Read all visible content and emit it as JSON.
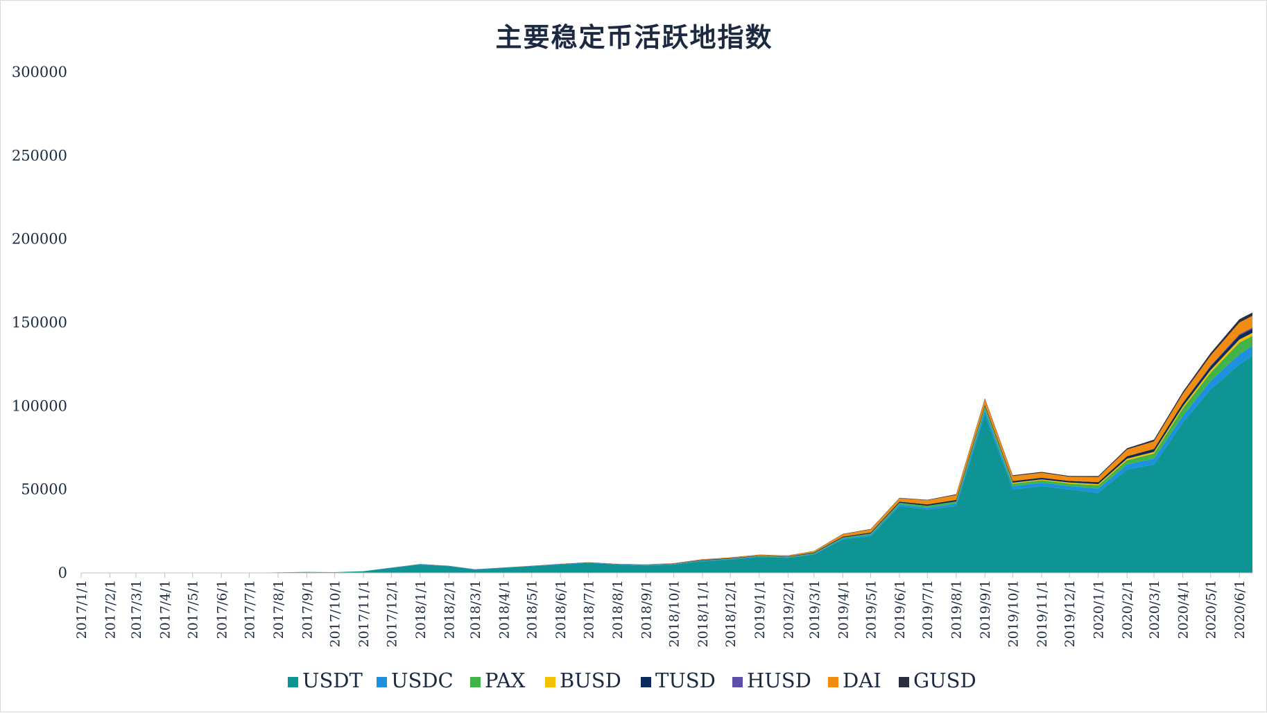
{
  "chart_data": {
    "type": "area",
    "stacked": true,
    "title": "主要稳定币活跃地指数",
    "xlabel": "",
    "ylabel": "",
    "ylim": [
      0,
      300000
    ],
    "yticks": [
      "0",
      "50000",
      "100000",
      "150000",
      "200000",
      "250000",
      "300000"
    ],
    "xticks": [
      "2017/1/1",
      "2017/2/1",
      "2017/3/1",
      "2017/4/1",
      "2017/5/1",
      "2017/6/1",
      "2017/7/1",
      "2017/8/1",
      "2017/9/1",
      "2017/10/1",
      "2017/11/1",
      "2017/12/1",
      "2018/1/1",
      "2018/2/1",
      "2018/3/1",
      "2018/4/1",
      "2018/5/1",
      "2018/6/1",
      "2018/7/1",
      "2018/8/1",
      "2018/9/1",
      "2018/10/1",
      "2018/11/1",
      "2018/12/1",
      "2019/1/1",
      "2019/2/1",
      "2019/3/1",
      "2019/4/1",
      "2019/5/1",
      "2019/6/1",
      "2019/7/1",
      "2019/8/1",
      "2019/9/1",
      "2019/10/1",
      "2019/11/1",
      "2019/12/1",
      "2020/1/1",
      "2020/2/1",
      "2020/3/1",
      "2020/4/1",
      "2020/5/1",
      "2020/6/1"
    ],
    "grid": false,
    "legend_position": "bottom",
    "x": [
      "2017/1/1",
      "2017/2/1",
      "2017/3/1",
      "2017/4/1",
      "2017/5/1",
      "2017/6/1",
      "2017/7/1",
      "2017/8/1",
      "2017/9/1",
      "2017/10/1",
      "2017/11/1",
      "2017/12/1",
      "2018/1/1",
      "2018/2/1",
      "2018/3/1",
      "2018/4/1",
      "2018/5/1",
      "2018/6/1",
      "2018/7/1",
      "2018/8/1",
      "2018/9/1",
      "2018/10/1",
      "2018/11/1",
      "2018/12/1",
      "2019/1/1",
      "2019/2/1",
      "2019/3/1",
      "2019/4/1",
      "2019/5/1",
      "2019/6/1",
      "2019/7/1",
      "2019/8/1",
      "2019/9/1",
      "2019/10/1",
      "2019/11/1",
      "2019/12/1",
      "2020/1/1",
      "2020/2/1",
      "2020/3/1",
      "2020/4/1",
      "2020/5/1",
      "2020/6/1",
      "2020/6/15"
    ],
    "series": [
      {
        "name": "USDT",
        "color": "#0e9494",
        "values": [
          0,
          0,
          0,
          0,
          0,
          0,
          0,
          300,
          600,
          400,
          1000,
          3000,
          5000,
          4000,
          2000,
          3000,
          4000,
          5000,
          6000,
          5000,
          4500,
          5000,
          7000,
          8000,
          9500,
          9000,
          11000,
          20000,
          22000,
          40000,
          38000,
          40000,
          95000,
          50000,
          52000,
          50000,
          48000,
          62000,
          65000,
          90000,
          110000,
          125000,
          130000
        ]
      },
      {
        "name": "USDC",
        "color": "#1e90e0",
        "values": [
          0,
          0,
          0,
          0,
          0,
          0,
          0,
          0,
          0,
          0,
          50,
          100,
          200,
          150,
          100,
          100,
          150,
          200,
          200,
          200,
          200,
          200,
          300,
          300,
          300,
          300,
          400,
          600,
          800,
          1000,
          1000,
          1500,
          2500,
          2000,
          2000,
          2000,
          2500,
          3000,
          3500,
          4000,
          5000,
          6000,
          6000
        ]
      },
      {
        "name": "PAX",
        "color": "#41b449",
        "values": [
          0,
          0,
          0,
          0,
          0,
          0,
          0,
          0,
          0,
          0,
          0,
          0,
          0,
          0,
          0,
          0,
          0,
          0,
          0,
          0,
          100,
          150,
          200,
          200,
          250,
          300,
          400,
          600,
          800,
          1000,
          1200,
          1300,
          1800,
          1500,
          1500,
          1500,
          2000,
          2500,
          3000,
          4500,
          5000,
          7000,
          6000
        ]
      },
      {
        "name": "BUSD",
        "color": "#f5c000",
        "values": [
          0,
          0,
          0,
          0,
          0,
          0,
          0,
          0,
          0,
          0,
          0,
          0,
          0,
          0,
          0,
          0,
          0,
          0,
          0,
          0,
          0,
          0,
          0,
          0,
          0,
          0,
          0,
          0,
          0,
          0,
          0,
          0,
          300,
          500,
          500,
          600,
          700,
          900,
          1000,
          1200,
          1500,
          1800,
          1800
        ]
      },
      {
        "name": "TUSD",
        "color": "#0c2a5c",
        "values": [
          0,
          0,
          0,
          0,
          0,
          0,
          0,
          0,
          0,
          0,
          0,
          50,
          100,
          100,
          100,
          100,
          100,
          150,
          150,
          150,
          200,
          200,
          300,
          300,
          300,
          300,
          400,
          500,
          600,
          700,
          800,
          900,
          1000,
          1000,
          1000,
          1000,
          1200,
          1500,
          1800,
          2000,
          2200,
          2500,
          2500
        ]
      },
      {
        "name": "HUSD",
        "color": "#5b4fa8",
        "values": [
          0,
          0,
          0,
          0,
          0,
          0,
          0,
          0,
          0,
          0,
          0,
          0,
          0,
          0,
          0,
          0,
          0,
          0,
          0,
          0,
          0,
          0,
          0,
          0,
          0,
          0,
          0,
          0,
          0,
          0,
          0,
          0,
          0,
          0,
          0,
          0,
          0,
          0,
          0,
          0,
          500,
          700,
          700
        ]
      },
      {
        "name": "DAI",
        "color": "#f28c10",
        "values": [
          0,
          0,
          0,
          0,
          0,
          0,
          0,
          0,
          0,
          0,
          0,
          0,
          50,
          50,
          50,
          50,
          50,
          100,
          100,
          100,
          150,
          200,
          300,
          400,
          500,
          500,
          800,
          1500,
          1800,
          2000,
          2500,
          3000,
          3500,
          3000,
          3000,
          2500,
          3000,
          4000,
          4500,
          5500,
          6000,
          7000,
          7000
        ]
      },
      {
        "name": "GUSD",
        "color": "#2a2f3e",
        "values": [
          0,
          0,
          0,
          0,
          0,
          0,
          0,
          0,
          0,
          0,
          0,
          0,
          0,
          0,
          0,
          0,
          0,
          0,
          0,
          0,
          0,
          50,
          80,
          100,
          100,
          100,
          150,
          200,
          250,
          300,
          300,
          400,
          500,
          500,
          500,
          500,
          600,
          800,
          1000,
          1200,
          1500,
          2000,
          2000
        ]
      }
    ]
  }
}
